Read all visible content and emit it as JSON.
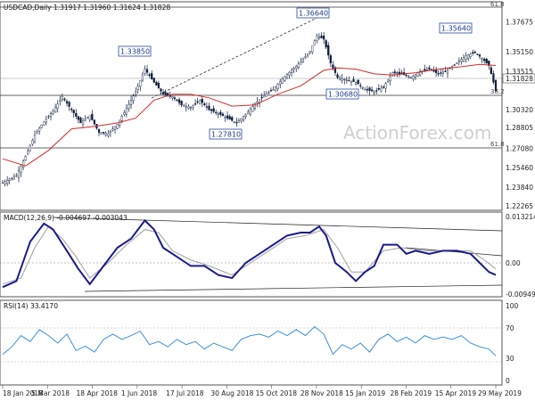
{
  "chart_data": {
    "type": "candlestick",
    "instrument": "USDCAD",
    "timeframe": "Daily",
    "header": {
      "main": "USDCAD,Daily  1.31917 1.31960 1.31624 1.31828",
      "macd": "MACD(12,26,9) -0.004697 -0.003043",
      "rsi": "RSI(14) 33.4170"
    },
    "x_tick_labels": [
      "18 Jan 2018",
      "5 Mar 2018",
      "18 Apr 2018",
      "1 Jun 2018",
      "17 Jul 2018",
      "30 Aug 2018",
      "15 Oct 2018",
      "28 Nov 2018",
      "15 Jan 2019",
      "28 Feb 2019",
      "15 Apr 2019",
      "29 May 2019"
    ],
    "price_axis": {
      "ylim": [
        1.2226,
        1.3844
      ],
      "ticks": [
        "1.37675",
        "1.35150",
        "1.33515",
        "1.31828",
        "1.30320",
        "1.28805",
        "1.27080",
        "1.25460",
        "1.23840",
        "1.22265"
      ],
      "current_price": "1.31828"
    },
    "fib_labels": [
      "61.8",
      "38.2",
      "61.8"
    ],
    "annotations": [
      "1.36640",
      "1.33850",
      "1.35640",
      "1.30680",
      "1.27810",
      "38.2"
    ],
    "price_series": [
      {
        "x": 0,
        "y": 1.242
      },
      {
        "x": 6,
        "y": 1.248
      },
      {
        "x": 10,
        "y": 1.264
      },
      {
        "x": 14,
        "y": 1.282
      },
      {
        "x": 18,
        "y": 1.293
      },
      {
        "x": 22,
        "y": 1.302
      },
      {
        "x": 26,
        "y": 1.314
      },
      {
        "x": 30,
        "y": 1.303
      },
      {
        "x": 34,
        "y": 1.292
      },
      {
        "x": 38,
        "y": 1.298
      },
      {
        "x": 42,
        "y": 1.284
      },
      {
        "x": 46,
        "y": 1.283
      },
      {
        "x": 50,
        "y": 1.291
      },
      {
        "x": 54,
        "y": 1.304
      },
      {
        "x": 58,
        "y": 1.318
      },
      {
        "x": 62,
        "y": 1.337
      },
      {
        "x": 66,
        "y": 1.326
      },
      {
        "x": 70,
        "y": 1.316
      },
      {
        "x": 74,
        "y": 1.314
      },
      {
        "x": 78,
        "y": 1.307
      },
      {
        "x": 82,
        "y": 1.305
      },
      {
        "x": 86,
        "y": 1.311
      },
      {
        "x": 90,
        "y": 1.303
      },
      {
        "x": 94,
        "y": 1.3
      },
      {
        "x": 98,
        "y": 1.296
      },
      {
        "x": 102,
        "y": 1.292
      },
      {
        "x": 106,
        "y": 1.299
      },
      {
        "x": 110,
        "y": 1.308
      },
      {
        "x": 114,
        "y": 1.315
      },
      {
        "x": 118,
        "y": 1.32
      },
      {
        "x": 122,
        "y": 1.329
      },
      {
        "x": 126,
        "y": 1.336
      },
      {
        "x": 130,
        "y": 1.343
      },
      {
        "x": 134,
        "y": 1.352
      },
      {
        "x": 137,
        "y": 1.365
      },
      {
        "x": 140,
        "y": 1.362
      },
      {
        "x": 143,
        "y": 1.342
      },
      {
        "x": 146,
        "y": 1.33
      },
      {
        "x": 150,
        "y": 1.328
      },
      {
        "x": 154,
        "y": 1.326
      },
      {
        "x": 158,
        "y": 1.32
      },
      {
        "x": 162,
        "y": 1.318
      },
      {
        "x": 166,
        "y": 1.322
      },
      {
        "x": 170,
        "y": 1.334
      },
      {
        "x": 174,
        "y": 1.333
      },
      {
        "x": 178,
        "y": 1.33
      },
      {
        "x": 182,
        "y": 1.335
      },
      {
        "x": 186,
        "y": 1.337
      },
      {
        "x": 190,
        "y": 1.333
      },
      {
        "x": 194,
        "y": 1.336
      },
      {
        "x": 198,
        "y": 1.342
      },
      {
        "x": 202,
        "y": 1.348
      },
      {
        "x": 206,
        "y": 1.351
      },
      {
        "x": 209,
        "y": 1.346
      },
      {
        "x": 212,
        "y": 1.34
      },
      {
        "x": 215,
        "y": 1.319
      }
    ],
    "sma55": [
      {
        "x": 0,
        "y": 1.262
      },
      {
        "x": 10,
        "y": 1.256
      },
      {
        "x": 20,
        "y": 1.269
      },
      {
        "x": 30,
        "y": 1.287
      },
      {
        "x": 40,
        "y": 1.289
      },
      {
        "x": 50,
        "y": 1.292
      },
      {
        "x": 58,
        "y": 1.296
      },
      {
        "x": 66,
        "y": 1.311
      },
      {
        "x": 74,
        "y": 1.316
      },
      {
        "x": 82,
        "y": 1.316
      },
      {
        "x": 90,
        "y": 1.313
      },
      {
        "x": 100,
        "y": 1.306
      },
      {
        "x": 110,
        "y": 1.307
      },
      {
        "x": 120,
        "y": 1.316
      },
      {
        "x": 130,
        "y": 1.323
      },
      {
        "x": 140,
        "y": 1.336
      },
      {
        "x": 146,
        "y": 1.338
      },
      {
        "x": 154,
        "y": 1.337
      },
      {
        "x": 162,
        "y": 1.333
      },
      {
        "x": 170,
        "y": 1.332
      },
      {
        "x": 180,
        "y": 1.334
      },
      {
        "x": 190,
        "y": 1.337
      },
      {
        "x": 200,
        "y": 1.339
      },
      {
        "x": 208,
        "y": 1.341
      },
      {
        "x": 215,
        "y": 1.34
      }
    ],
    "macd_axis": {
      "ylim": [
        -0.0113,
        0.014
      ],
      "ticks": [
        "0.013214",
        "0.00",
        "-0.009496"
      ]
    },
    "macd_line": [
      {
        "x": 0,
        "y": -0.009
      },
      {
        "x": 6,
        "y": -0.007
      },
      {
        "x": 12,
        "y": 0.006
      },
      {
        "x": 18,
        "y": 0.012
      },
      {
        "x": 22,
        "y": 0.01
      },
      {
        "x": 28,
        "y": 0.003
      },
      {
        "x": 33,
        "y": -0.003
      },
      {
        "x": 38,
        "y": -0.008
      },
      {
        "x": 44,
        "y": -0.002
      },
      {
        "x": 50,
        "y": 0.004
      },
      {
        "x": 56,
        "y": 0.007
      },
      {
        "x": 62,
        "y": 0.013
      },
      {
        "x": 66,
        "y": 0.01
      },
      {
        "x": 70,
        "y": 0.004
      },
      {
        "x": 76,
        "y": 0.001
      },
      {
        "x": 82,
        "y": -0.002
      },
      {
        "x": 88,
        "y": -0.002
      },
      {
        "x": 94,
        "y": -0.005
      },
      {
        "x": 100,
        "y": -0.006
      },
      {
        "x": 106,
        "y": -0.001
      },
      {
        "x": 112,
        "y": 0.002
      },
      {
        "x": 118,
        "y": 0.005
      },
      {
        "x": 124,
        "y": 0.008
      },
      {
        "x": 130,
        "y": 0.009
      },
      {
        "x": 134,
        "y": 0.009
      },
      {
        "x": 138,
        "y": 0.011
      },
      {
        "x": 141,
        "y": 0.008
      },
      {
        "x": 145,
        "y": -0.001
      },
      {
        "x": 150,
        "y": -0.004
      },
      {
        "x": 154,
        "y": -0.007
      },
      {
        "x": 158,
        "y": -0.004
      },
      {
        "x": 162,
        "y": -0.002
      },
      {
        "x": 166,
        "y": 0.005
      },
      {
        "x": 172,
        "y": 0.005
      },
      {
        "x": 176,
        "y": 0.002
      },
      {
        "x": 180,
        "y": 0.003
      },
      {
        "x": 186,
        "y": 0.002
      },
      {
        "x": 192,
        "y": 0.003
      },
      {
        "x": 198,
        "y": 0.003
      },
      {
        "x": 204,
        "y": 0.002
      },
      {
        "x": 208,
        "y": -0.001
      },
      {
        "x": 212,
        "y": -0.004
      },
      {
        "x": 215,
        "y": -0.005
      }
    ],
    "macd_signal": [
      {
        "x": 0,
        "y": -0.008
      },
      {
        "x": 8,
        "y": -0.006
      },
      {
        "x": 14,
        "y": 0.004
      },
      {
        "x": 20,
        "y": 0.011
      },
      {
        "x": 26,
        "y": 0.007
      },
      {
        "x": 32,
        "y": 0.001
      },
      {
        "x": 38,
        "y": -0.006
      },
      {
        "x": 46,
        "y": -0.001
      },
      {
        "x": 54,
        "y": 0.005
      },
      {
        "x": 62,
        "y": 0.01
      },
      {
        "x": 68,
        "y": 0.009
      },
      {
        "x": 74,
        "y": 0.003
      },
      {
        "x": 82,
        "y": 0.0
      },
      {
        "x": 90,
        "y": -0.002
      },
      {
        "x": 100,
        "y": -0.005
      },
      {
        "x": 108,
        "y": -0.001
      },
      {
        "x": 116,
        "y": 0.003
      },
      {
        "x": 124,
        "y": 0.007
      },
      {
        "x": 132,
        "y": 0.008
      },
      {
        "x": 140,
        "y": 0.01
      },
      {
        "x": 146,
        "y": 0.004
      },
      {
        "x": 152,
        "y": -0.004
      },
      {
        "x": 158,
        "y": -0.004
      },
      {
        "x": 166,
        "y": 0.003
      },
      {
        "x": 174,
        "y": 0.004
      },
      {
        "x": 184,
        "y": 0.003
      },
      {
        "x": 194,
        "y": 0.003
      },
      {
        "x": 204,
        "y": 0.003
      },
      {
        "x": 210,
        "y": 0.0
      },
      {
        "x": 215,
        "y": -0.003
      }
    ],
    "rsi_axis": {
      "ylim": [
        0,
        100
      ],
      "ticks": [
        "100",
        "70",
        "30",
        "0"
      ]
    },
    "rsi_line": [
      {
        "x": 0,
        "y": 35
      },
      {
        "x": 4,
        "y": 45
      },
      {
        "x": 8,
        "y": 60
      },
      {
        "x": 12,
        "y": 52
      },
      {
        "x": 16,
        "y": 68
      },
      {
        "x": 20,
        "y": 60
      },
      {
        "x": 24,
        "y": 50
      },
      {
        "x": 28,
        "y": 62
      },
      {
        "x": 32,
        "y": 40
      },
      {
        "x": 36,
        "y": 46
      },
      {
        "x": 40,
        "y": 38
      },
      {
        "x": 44,
        "y": 55
      },
      {
        "x": 48,
        "y": 62
      },
      {
        "x": 52,
        "y": 55
      },
      {
        "x": 56,
        "y": 60
      },
      {
        "x": 60,
        "y": 66
      },
      {
        "x": 64,
        "y": 48
      },
      {
        "x": 68,
        "y": 52
      },
      {
        "x": 72,
        "y": 45
      },
      {
        "x": 76,
        "y": 55
      },
      {
        "x": 80,
        "y": 48
      },
      {
        "x": 84,
        "y": 52
      },
      {
        "x": 88,
        "y": 42
      },
      {
        "x": 92,
        "y": 50
      },
      {
        "x": 96,
        "y": 45
      },
      {
        "x": 100,
        "y": 40
      },
      {
        "x": 104,
        "y": 55
      },
      {
        "x": 108,
        "y": 60
      },
      {
        "x": 112,
        "y": 62
      },
      {
        "x": 116,
        "y": 58
      },
      {
        "x": 120,
        "y": 66
      },
      {
        "x": 124,
        "y": 60
      },
      {
        "x": 128,
        "y": 68
      },
      {
        "x": 132,
        "y": 60
      },
      {
        "x": 136,
        "y": 72
      },
      {
        "x": 140,
        "y": 62
      },
      {
        "x": 144,
        "y": 35
      },
      {
        "x": 148,
        "y": 48
      },
      {
        "x": 152,
        "y": 42
      },
      {
        "x": 156,
        "y": 50
      },
      {
        "x": 160,
        "y": 38
      },
      {
        "x": 164,
        "y": 55
      },
      {
        "x": 168,
        "y": 62
      },
      {
        "x": 172,
        "y": 52
      },
      {
        "x": 176,
        "y": 58
      },
      {
        "x": 180,
        "y": 50
      },
      {
        "x": 184,
        "y": 60
      },
      {
        "x": 188,
        "y": 55
      },
      {
        "x": 192,
        "y": 58
      },
      {
        "x": 196,
        "y": 55
      },
      {
        "x": 200,
        "y": 60
      },
      {
        "x": 204,
        "y": 50
      },
      {
        "x": 208,
        "y": 45
      },
      {
        "x": 212,
        "y": 42
      },
      {
        "x": 215,
        "y": 33
      }
    ]
  },
  "watermark": "ActionForex.com",
  "colors": {
    "candle": "#0a1a3a",
    "sma": "#d62a2a",
    "macd": "#1a1a8c",
    "signal": "#a0a0a0",
    "rsi": "#3c8fe0",
    "label_border": "#2a4aa0"
  }
}
